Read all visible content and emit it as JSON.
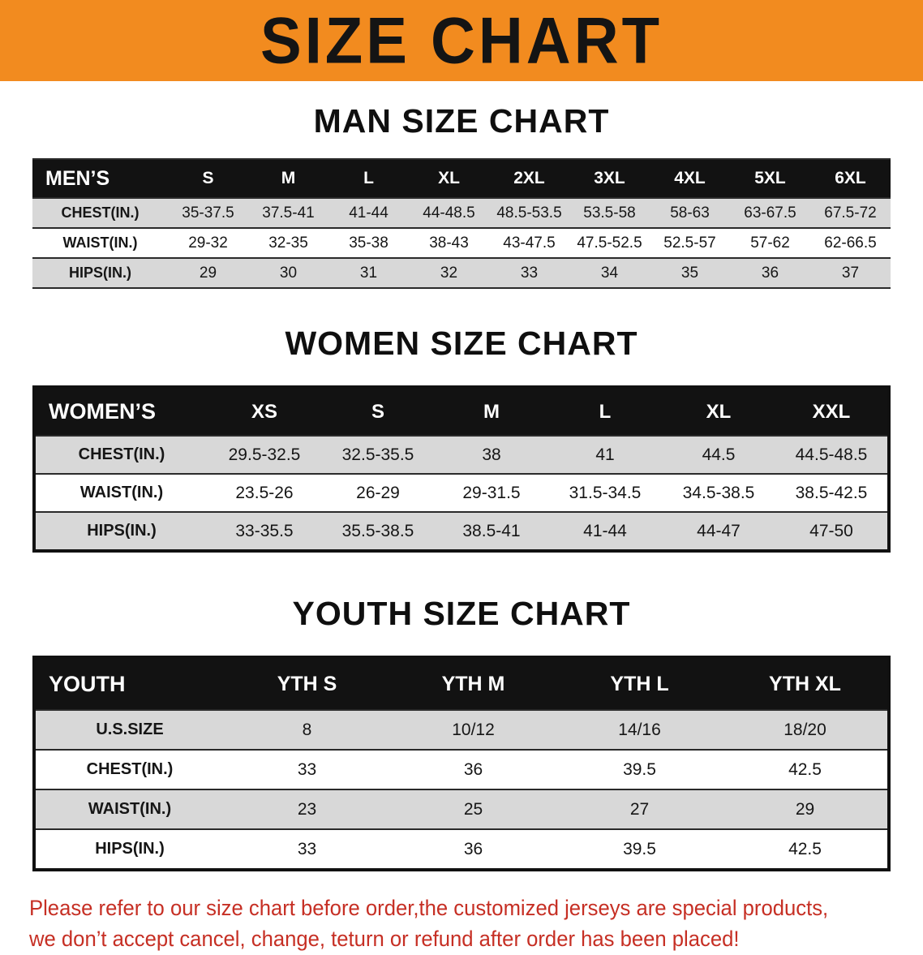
{
  "banner": {
    "title": "SIZE CHART",
    "bg_color": "#f28b1f",
    "text_color": "#141414"
  },
  "chart_data": [
    {
      "type": "table",
      "title": "MAN SIZE CHART",
      "header": [
        "MEN’S",
        "S",
        "M",
        "L",
        "XL",
        "2XL",
        "3XL",
        "4XL",
        "5XL",
        "6XL"
      ],
      "rows": [
        [
          "CHEST(IN.)",
          "35-37.5",
          "37.5-41",
          "41-44",
          "44-48.5",
          "48.5-53.5",
          "53.5-58",
          "58-63",
          "63-67.5",
          "67.5-72"
        ],
        [
          "WAIST(IN.)",
          "29-32",
          "32-35",
          "35-38",
          "38-43",
          "43-47.5",
          "47.5-52.5",
          "52.5-57",
          "57-62",
          "62-66.5"
        ],
        [
          "HIPS(IN.)",
          "29",
          "30",
          "31",
          "32",
          "33",
          "34",
          "35",
          "36",
          "37"
        ]
      ]
    },
    {
      "type": "table",
      "title": "WOMEN SIZE CHART",
      "header": [
        "WOMEN’S",
        "XS",
        "S",
        "M",
        "L",
        "XL",
        "XXL"
      ],
      "rows": [
        [
          "CHEST(IN.)",
          "29.5-32.5",
          "32.5-35.5",
          "38",
          "41",
          "44.5",
          "44.5-48.5"
        ],
        [
          "WAIST(IN.)",
          "23.5-26",
          "26-29",
          "29-31.5",
          "31.5-34.5",
          "34.5-38.5",
          "38.5-42.5"
        ],
        [
          "HIPS(IN.)",
          "33-35.5",
          "35.5-38.5",
          "38.5-41",
          "41-44",
          "44-47",
          "47-50"
        ]
      ]
    },
    {
      "type": "table",
      "title": "YOUTH SIZE CHART",
      "header": [
        "YOUTH",
        "YTH S",
        "YTH M",
        "YTH L",
        "YTH XL"
      ],
      "rows": [
        [
          "U.S.SIZE",
          "8",
          "10/12",
          "14/16",
          "18/20"
        ],
        [
          "CHEST(IN.)",
          "33",
          "36",
          "39.5",
          "42.5"
        ],
        [
          "WAIST(IN.)",
          "23",
          "25",
          "27",
          "29"
        ],
        [
          "HIPS(IN.)",
          "33",
          "36",
          "39.5",
          "42.5"
        ]
      ]
    }
  ],
  "disclaimer": {
    "line1": "Please refer to our size chart before order,the customized jerseys are special products,",
    "line2": "we don’t accept cancel, change, teturn or refund after order has been placed!",
    "color": "#c62f24"
  }
}
